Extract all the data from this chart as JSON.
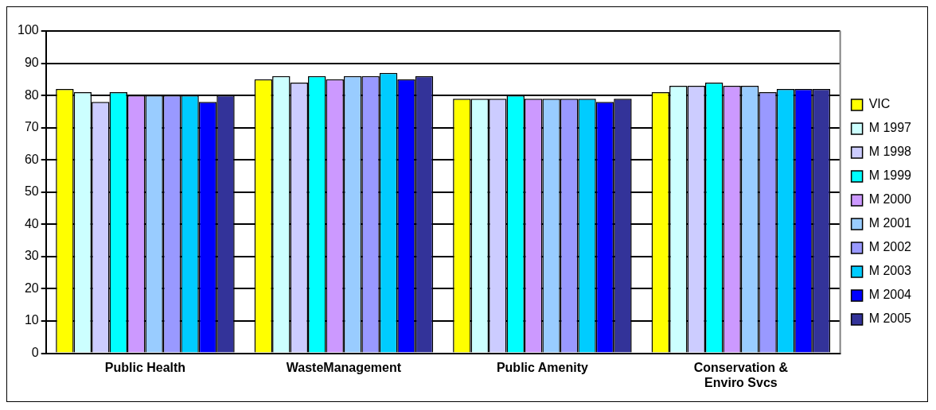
{
  "chart_data": {
    "type": "bar",
    "categories": [
      "Public Health",
      "WasteManagement",
      "Public Amenity",
      "Conservation &\nEnviro Svcs"
    ],
    "series": [
      {
        "name": "VIC",
        "color": "#ffff00",
        "values": [
          82,
          85,
          79,
          81
        ]
      },
      {
        "name": "M 1997",
        "color": "#ccffff",
        "values": [
          81,
          86,
          79,
          83
        ]
      },
      {
        "name": "M 1998",
        "color": "#ccccff",
        "values": [
          78,
          84,
          79,
          83
        ]
      },
      {
        "name": "M 1999",
        "color": "#00ffff",
        "values": [
          81,
          86,
          80,
          84
        ]
      },
      {
        "name": "M 2000",
        "color": "#cc99ff",
        "values": [
          80,
          85,
          79,
          83
        ]
      },
      {
        "name": "M 2001",
        "color": "#99ccff",
        "values": [
          80,
          86,
          79,
          83
        ]
      },
      {
        "name": "M 2002",
        "color": "#9999ff",
        "values": [
          80,
          86,
          79,
          81
        ]
      },
      {
        "name": "M 2003",
        "color": "#00ccff",
        "values": [
          80,
          87,
          79,
          82
        ]
      },
      {
        "name": "M 2004",
        "color": "#0000ff",
        "values": [
          78,
          85,
          78,
          82
        ]
      },
      {
        "name": "M 2005",
        "color": "#333399",
        "values": [
          80,
          86,
          79,
          82
        ]
      }
    ],
    "ylim": [
      0,
      100
    ],
    "yticks": [
      0,
      10,
      20,
      30,
      40,
      50,
      60,
      70,
      80,
      90,
      100
    ],
    "grid": "y",
    "legend": "right"
  }
}
